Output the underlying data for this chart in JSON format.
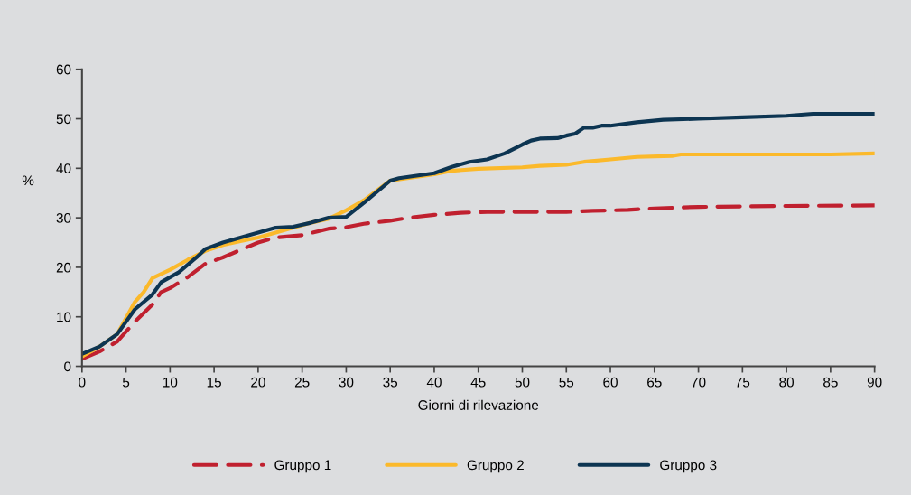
{
  "chart_data": {
    "type": "line",
    "xlabel": "Giorni di rilevazione",
    "ylabel": "%",
    "xlim": [
      0,
      90
    ],
    "ylim": [
      0,
      60
    ],
    "xticks": [
      0,
      5,
      10,
      15,
      20,
      25,
      30,
      35,
      40,
      45,
      50,
      55,
      60,
      65,
      70,
      75,
      80,
      85,
      90
    ],
    "yticks": [
      0,
      10,
      20,
      30,
      40,
      50,
      60
    ],
    "grid": false,
    "legend": "bottom",
    "marker": "none",
    "series": [
      {
        "name": "Gruppo 1",
        "color": "#c0202f",
        "line_style": "dashed",
        "x": [
          0,
          2,
          4,
          6,
          8,
          9,
          10,
          12,
          14,
          16,
          18,
          20,
          22,
          25,
          28,
          30,
          32,
          35,
          37,
          40,
          43,
          46,
          50,
          55,
          58,
          62,
          65,
          70,
          75,
          80,
          90
        ],
        "values": [
          1.5,
          3,
          5,
          9,
          12.5,
          15,
          15.8,
          18,
          20.7,
          22,
          23.5,
          25,
          26,
          26.5,
          27.8,
          28.1,
          28.8,
          29.4,
          30,
          30.6,
          31,
          31.2,
          31.2,
          31.2,
          31.4,
          31.6,
          31.9,
          32.2,
          32.3,
          32.4,
          32.5
        ]
      },
      {
        "name": "Gruppo 2",
        "color": "#fbb92b",
        "line_style": "solid",
        "x": [
          0,
          2,
          4,
          6,
          7,
          8,
          10,
          12,
          14,
          16,
          18,
          20,
          22,
          24,
          26,
          28,
          30,
          32,
          35,
          40,
          42,
          45,
          50,
          52,
          55,
          57,
          60,
          63,
          67,
          68,
          75,
          85,
          90
        ],
        "values": [
          2,
          4,
          6.5,
          13,
          15,
          17.8,
          19.5,
          21.5,
          23.3,
          24.5,
          25.3,
          26,
          27,
          28,
          29,
          29.8,
          31.5,
          33.5,
          37.5,
          38.8,
          39.5,
          39.9,
          40.2,
          40.5,
          40.7,
          41.3,
          41.8,
          42.3,
          42.5,
          42.8,
          42.8,
          42.8,
          43
        ]
      },
      {
        "name": "Gruppo 3",
        "color": "#0d3552",
        "line_style": "solid",
        "x": [
          0,
          2,
          4,
          6,
          8,
          9,
          11,
          13,
          14,
          16,
          18,
          20,
          22,
          24,
          26,
          28,
          29,
          30,
          32,
          35,
          36,
          40,
          42,
          44,
          46,
          48,
          50,
          51,
          52,
          54,
          55,
          56,
          57,
          58,
          59,
          60,
          63,
          66,
          70,
          75,
          80,
          83,
          90
        ],
        "values": [
          2.5,
          4,
          6.5,
          11.5,
          14.5,
          17,
          19,
          22,
          23.7,
          25,
          26,
          27,
          28,
          28.2,
          29,
          30,
          30.1,
          30.2,
          33,
          37.5,
          38,
          39,
          40.3,
          41.3,
          41.8,
          43,
          44.8,
          45.6,
          46,
          46.1,
          46.6,
          47,
          48.2,
          48.2,
          48.6,
          48.6,
          49.3,
          49.8,
          50,
          50.3,
          50.6,
          51,
          51
        ]
      }
    ]
  }
}
